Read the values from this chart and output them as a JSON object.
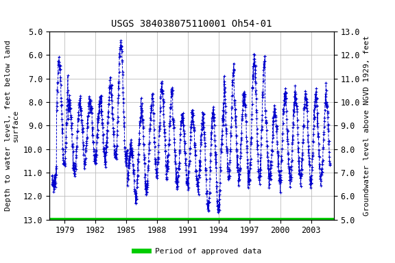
{
  "title": "USGS 384038075110001 Oh54-01",
  "ylabel_left": "Depth to water level, feet below land\nsurface",
  "ylabel_right": "Groundwater level above NGVD 1929, feet",
  "ylim_left": [
    13.0,
    5.0
  ],
  "xlim": [
    1977.5,
    2005.2
  ],
  "yticks_left": [
    5.0,
    6.0,
    7.0,
    8.0,
    9.0,
    10.0,
    11.0,
    12.0,
    13.0
  ],
  "xticks": [
    1979,
    1982,
    1985,
    1988,
    1991,
    1994,
    1997,
    2000,
    2003
  ],
  "line_color": "#0000CC",
  "marker_color": "#0000CC",
  "green_bar_color": "#00CC00",
  "legend_label": "Period of approved data",
  "bg_color": "#ffffff",
  "grid_color": "#bbbbbb",
  "title_fontsize": 10,
  "axis_label_fontsize": 8,
  "tick_fontsize": 8.5
}
